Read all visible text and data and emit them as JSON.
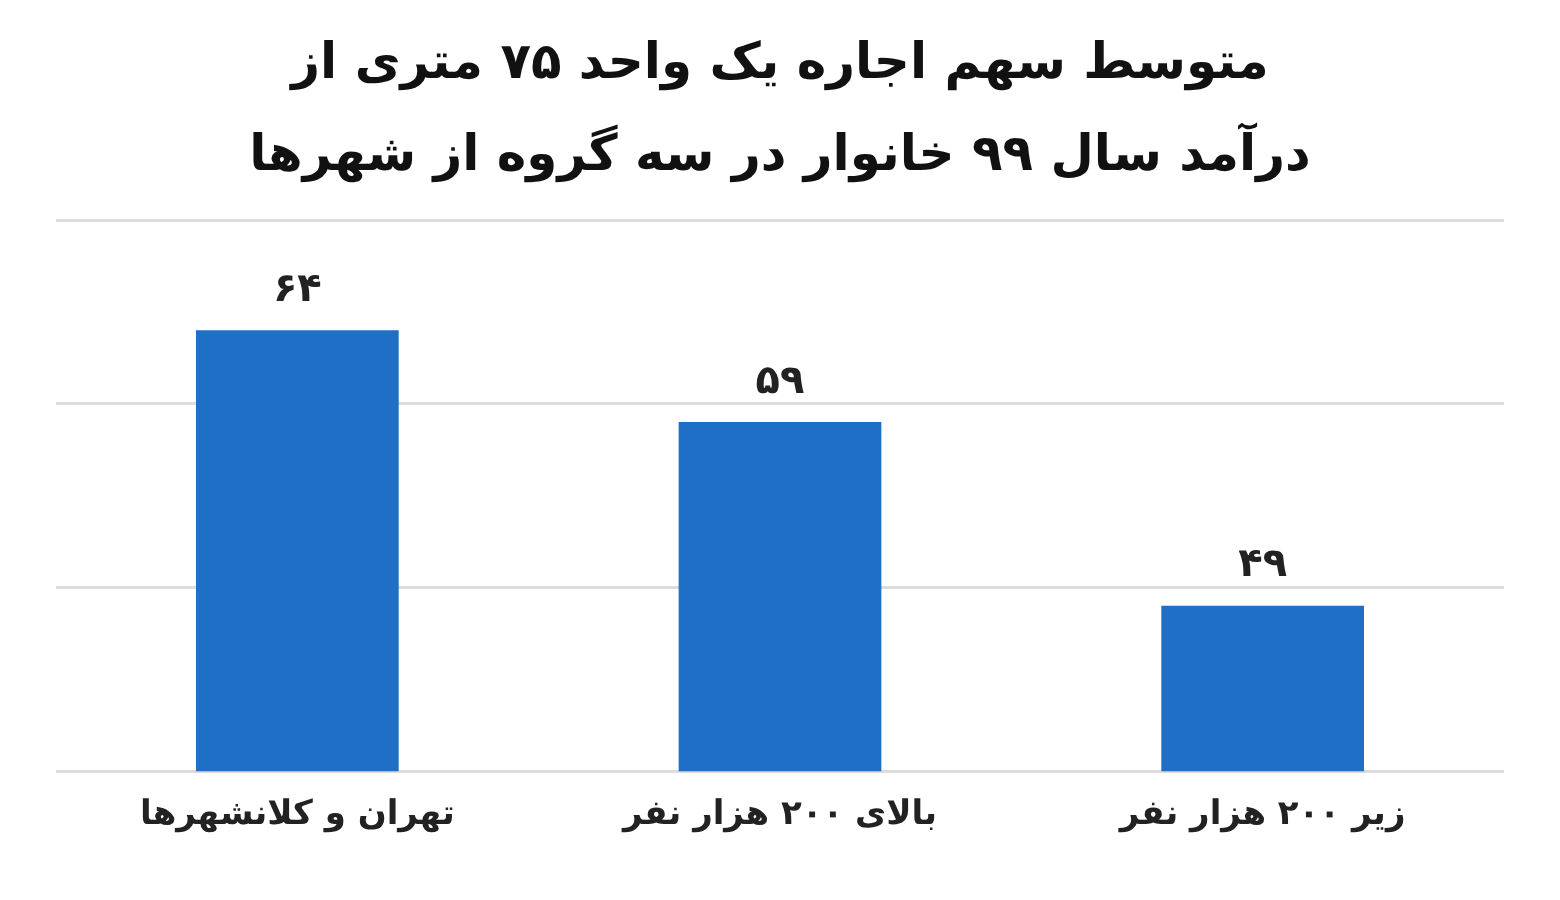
{
  "chart_data": {
    "type": "bar",
    "title": "متوسط سهم اجاره یک واحد ۷۵ متری از درآمد سال ۹۹ خانوار در سه گروه از شهرها",
    "categories": [
      "تهران و کلانشهرها",
      "بالای ۲۰۰ هزار نفر",
      "زیر ۲۰۰ هزار نفر"
    ],
    "values": [
      64,
      59,
      49
    ],
    "value_labels": [
      "۶۴",
      "۵۹",
      "۴۹"
    ],
    "color": "#1f6fc6",
    "ylim": [
      40,
      70
    ],
    "yticks": [
      {
        "value": 40,
        "label": null
      },
      {
        "value": 50,
        "label": null
      },
      {
        "value": 60,
        "label": null
      },
      {
        "value": 70,
        "label": null
      }
    ],
    "tick_labels": "x",
    "grid": "y"
  }
}
